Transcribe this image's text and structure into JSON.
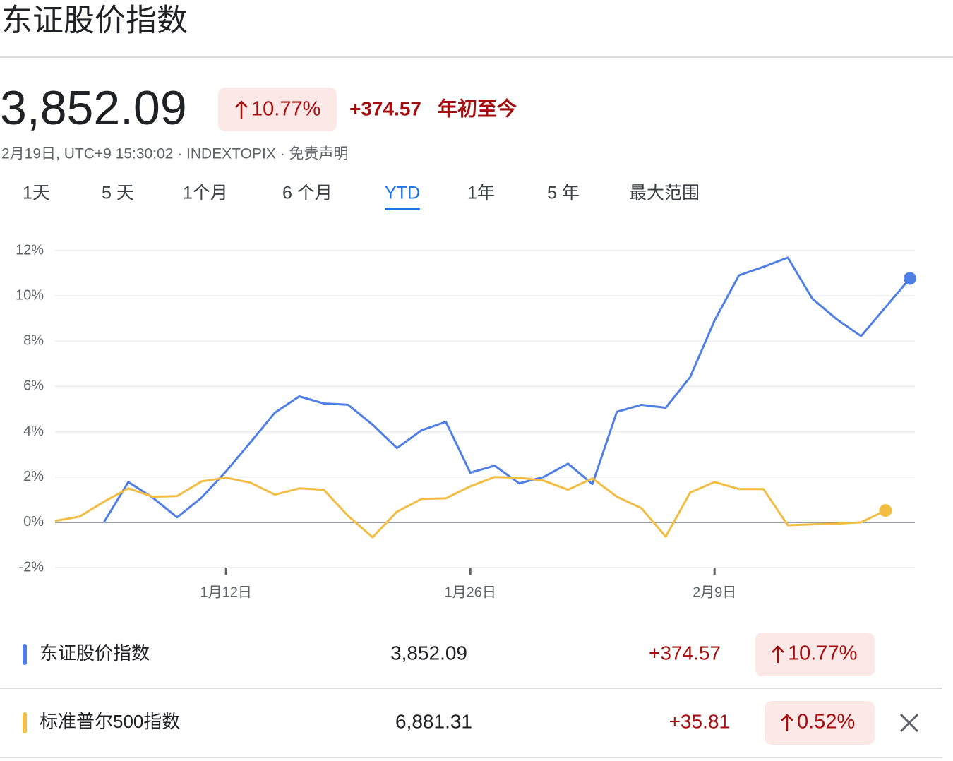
{
  "header": {
    "title": "东证股价指数"
  },
  "quote": {
    "price": "3,852.09",
    "change_percent": "10.77%",
    "change": "+374.57",
    "period": "年初至今",
    "meta": "2月19日, UTC+9 15:30:02 · INDEXTOPIX · 免责声明"
  },
  "tabs": {
    "items": [
      "1天",
      "5 天",
      "1个月",
      "6 个月",
      "YTD",
      "1年",
      "5 年",
      "最大范围"
    ],
    "selected": 4
  },
  "chart_data": {
    "type": "line",
    "categories": [
      null,
      null,
      null,
      null,
      null,
      null,
      null,
      "1月12日",
      null,
      null,
      null,
      null,
      null,
      null,
      null,
      null,
      null,
      "1月26日",
      null,
      null,
      null,
      null,
      null,
      null,
      null,
      null,
      null,
      "2月9日",
      null,
      null,
      null,
      null,
      null,
      null,
      null,
      null
    ],
    "series": [
      {
        "name": "东证股价指数",
        "color": "#4f7ee4",
        "values": [
          null,
          null,
          0,
          1.78,
          1.09,
          0.22,
          1.09,
          2.25,
          3.53,
          4.84,
          5.56,
          5.25,
          5.19,
          4.31,
          3.28,
          4.06,
          4.44,
          2.19,
          2.5,
          1.72,
          2.0,
          2.59,
          1.69,
          4.88,
          5.19,
          5.06,
          6.41,
          8.91,
          10.91,
          11.28,
          11.69,
          9.88,
          8.97,
          8.22,
          9.5,
          10.77
        ]
      },
      {
        "name": "标准普尔500指数",
        "color": "#f2bd42",
        "values": [
          0.06,
          0.25,
          0.91,
          1.5,
          1.13,
          1.16,
          1.81,
          1.97,
          1.75,
          1.22,
          1.5,
          1.44,
          0.28,
          -0.66,
          0.47,
          1.03,
          1.06,
          1.59,
          2.0,
          1.97,
          1.84,
          1.44,
          1.94,
          1.13,
          0.63,
          -0.63,
          1.31,
          1.78,
          1.47,
          1.47,
          -0.13,
          -0.09,
          -0.06,
          0.0,
          0.52,
          null
        ]
      }
    ],
    "ylim": [
      -2,
      12
    ],
    "yticks": [
      {
        "value": -2,
        "label": "-2%"
      },
      {
        "value": 0,
        "label": "0%"
      },
      {
        "value": 2,
        "label": "2%"
      },
      {
        "value": 4,
        "label": "4%"
      },
      {
        "value": 6,
        "label": "6%"
      },
      {
        "value": 8,
        "label": "8%"
      },
      {
        "value": 10,
        "label": "10%"
      },
      {
        "value": 12,
        "label": "12%"
      }
    ],
    "grid": true
  },
  "legend_rows": [
    {
      "price": "3,852.09",
      "change": "+374.57",
      "change_percent": "10.77%"
    },
    {
      "price": "6,881.31",
      "change": "+35.81",
      "change_percent": "0.52%"
    }
  ]
}
